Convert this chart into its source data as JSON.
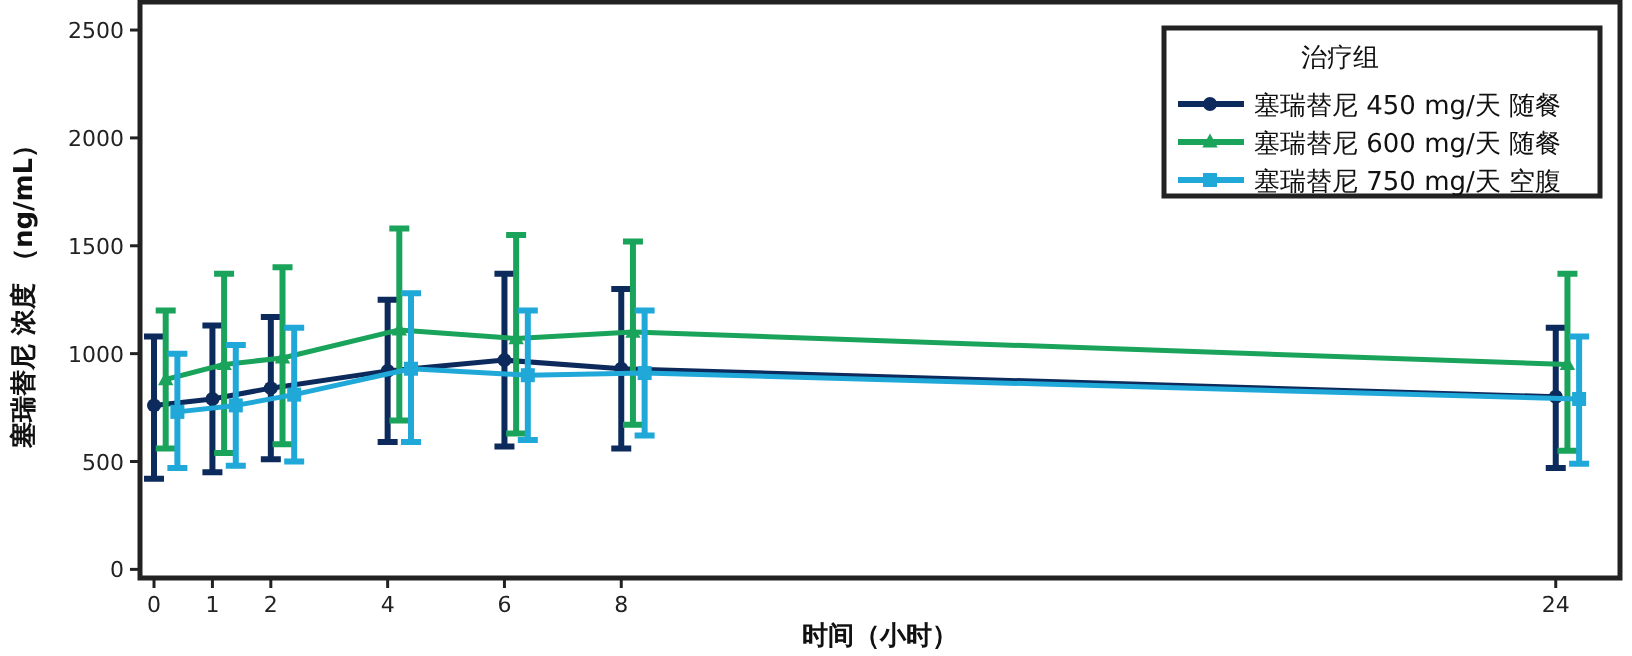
{
  "chart_data": {
    "type": "line",
    "xlabel": "时间（小时）",
    "ylabel": "塞瑞替尼 浓度 （ng/mL）",
    "legend_title": "治疗组",
    "xlim": [
      -0.24,
      25.1
    ],
    "xticks": [
      0,
      1,
      2,
      4,
      6,
      8,
      24
    ],
    "ylim": [
      -40,
      2630
    ],
    "yticks": [
      0,
      500,
      1000,
      1500,
      2000,
      2500
    ],
    "grid": false,
    "legend": "top right",
    "line_style": "solid",
    "series": [
      {
        "name": "塞瑞替尼 450 mg/天 随餐",
        "color": "#0d2a5c",
        "marker": "circle",
        "x": [
          0,
          1,
          2,
          4,
          6,
          8,
          24
        ],
        "values": [
          760,
          790,
          840,
          920,
          970,
          930,
          800
        ],
        "errors": [
          [
            420,
            1080
          ],
          [
            450,
            1130
          ],
          [
            510,
            1170
          ],
          [
            590,
            1250
          ],
          [
            570,
            1370
          ],
          [
            560,
            1300
          ],
          [
            470,
            1120
          ]
        ]
      },
      {
        "name": "塞瑞替尼 600 mg/天 随餐",
        "color": "#1aa35a",
        "marker": "triangle",
        "x": [
          0.2,
          1.2,
          2.2,
          4.2,
          6.2,
          8.2,
          24.2
        ],
        "values": [
          880,
          950,
          980,
          1110,
          1070,
          1100,
          950
        ],
        "errors": [
          [
            560,
            1200
          ],
          [
            540,
            1370
          ],
          [
            580,
            1400
          ],
          [
            690,
            1580
          ],
          [
            630,
            1550
          ],
          [
            670,
            1520
          ],
          [
            550,
            1370
          ]
        ]
      },
      {
        "name": "塞瑞替尼 750 mg/天 空腹",
        "color": "#1fa8d8",
        "marker": "square",
        "x": [
          0.4,
          1.4,
          2.4,
          4.4,
          6.4,
          8.4,
          24.4
        ],
        "values": [
          730,
          760,
          810,
          930,
          900,
          910,
          790
        ],
        "errors": [
          [
            470,
            1000
          ],
          [
            480,
            1040
          ],
          [
            500,
            1120
          ],
          [
            590,
            1280
          ],
          [
            600,
            1200
          ],
          [
            620,
            1200
          ],
          [
            490,
            1080
          ]
        ]
      }
    ]
  }
}
